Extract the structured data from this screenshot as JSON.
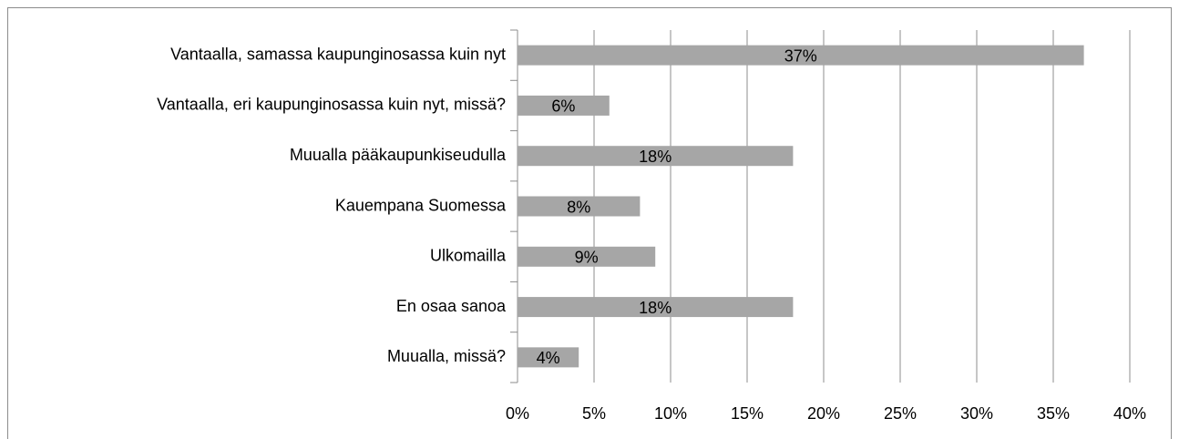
{
  "chart_data": {
    "type": "bar",
    "orientation": "horizontal",
    "categories": [
      "Vantaalla, samassa kaupunginosassa kuin nyt",
      "Vantaalla, eri kaupunginosassa kuin nyt, missä?",
      "Muualla pääkaupunkiseudulla",
      "Kauempana Suomessa",
      "Ulkomailla",
      "En osaa sanoa",
      "Muualla, missä?"
    ],
    "values": [
      37,
      6,
      18,
      8,
      9,
      18,
      4
    ],
    "value_labels": [
      "37%",
      "6%",
      "18%",
      "8%",
      "9%",
      "18%",
      "4%"
    ],
    "color": "#a6a6a6",
    "xlim": [
      0,
      40
    ],
    "xticks": [
      {
        "value": 0,
        "label": "0%"
      },
      {
        "value": 5,
        "label": "5%"
      },
      {
        "value": 10,
        "label": "10%"
      },
      {
        "value": 15,
        "label": "15%"
      },
      {
        "value": 20,
        "label": "20%"
      },
      {
        "value": 25,
        "label": "25%"
      },
      {
        "value": 30,
        "label": "30%"
      },
      {
        "value": 35,
        "label": "35%"
      },
      {
        "value": 40,
        "label": "40%"
      }
    ],
    "grid": true
  }
}
